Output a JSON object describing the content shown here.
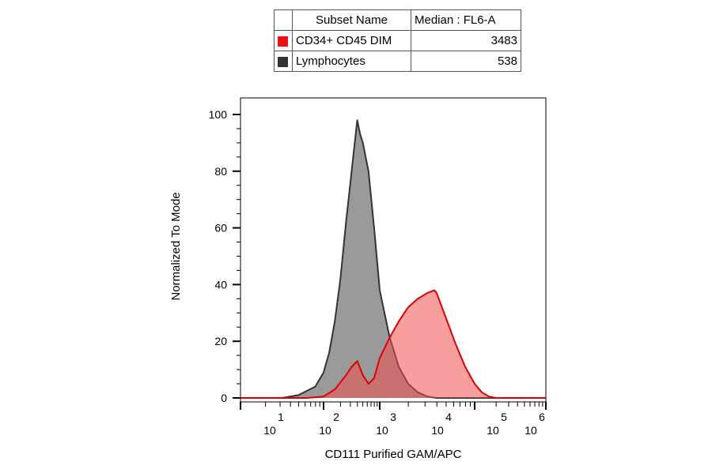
{
  "legend": {
    "header_name": "Subset Name",
    "header_value": "Median : FL6-A",
    "rows": [
      {
        "name": "CD34+ CD45 DIM",
        "value": "3483",
        "color": "#ee1111"
      },
      {
        "name": "Lymphocytes",
        "value": "538",
        "color": "#333333"
      }
    ]
  },
  "chart_data": {
    "type": "area",
    "xlabel": "CD111 Purified GAM/APC",
    "ylabel": "Normalized To Mode",
    "x_scale": "log",
    "xlim": [
      100,
      1000000
    ],
    "ylim": [
      0,
      100
    ],
    "x_ticks": [
      {
        "base": "10",
        "exp": "1",
        "value": 10
      },
      {
        "base": "10",
        "exp": "2",
        "value": 100
      },
      {
        "base": "10",
        "exp": "3",
        "value": 1000
      },
      {
        "base": "10",
        "exp": "4",
        "value": 10000
      },
      {
        "base": "10",
        "exp": "5",
        "value": 100000
      },
      {
        "base": "10",
        "exp": "6",
        "value": 1000000
      }
    ],
    "y_ticks": [
      "0",
      "20",
      "40",
      "60",
      "80",
      "100"
    ],
    "series": [
      {
        "name": "Lymphocytes",
        "stroke": "#333333",
        "fill": "#9a9a9a",
        "points": [
          [
            100,
            0
          ],
          [
            316,
            0
          ],
          [
            500,
            1
          ],
          [
            794,
            4
          ],
          [
            1000,
            9
          ],
          [
            1259,
            16
          ],
          [
            1585,
            27
          ],
          [
            1995,
            42
          ],
          [
            2512,
            62
          ],
          [
            3162,
            80
          ],
          [
            3548,
            89
          ],
          [
            3981,
            98
          ],
          [
            4467,
            93
          ],
          [
            5012,
            90
          ],
          [
            5623,
            85
          ],
          [
            6310,
            80
          ],
          [
            7943,
            60
          ],
          [
            10000,
            38
          ],
          [
            12589,
            22
          ],
          [
            15849,
            11
          ],
          [
            19953,
            5
          ],
          [
            25119,
            2
          ],
          [
            31623,
            0.5
          ],
          [
            39811,
            0
          ],
          [
            1000000,
            0
          ]
        ]
      },
      {
        "name": "CD34+ CD45 DIM",
        "stroke": "#dd0000",
        "fill": "rgba(240, 80, 80, 0.55)",
        "points": [
          [
            100,
            0
          ],
          [
            631,
            0
          ],
          [
            1000,
            0.5
          ],
          [
            1585,
            3
          ],
          [
            2512,
            8
          ],
          [
            3162,
            11
          ],
          [
            3981,
            13
          ],
          [
            5012,
            8
          ],
          [
            6310,
            5
          ],
          [
            7943,
            7
          ],
          [
            10000,
            14
          ],
          [
            12589,
            21
          ],
          [
            15849,
            27
          ],
          [
            19953,
            32
          ],
          [
            25119,
            35
          ],
          [
            31623,
            37
          ],
          [
            37584,
            38
          ],
          [
            39811,
            37
          ],
          [
            50119,
            28
          ],
          [
            63096,
            19
          ],
          [
            79433,
            11
          ],
          [
            100000,
            5
          ],
          [
            125893,
            2
          ],
          [
            158489,
            0.5
          ],
          [
            199526,
            0
          ],
          [
            1000000,
            0
          ]
        ]
      }
    ]
  }
}
